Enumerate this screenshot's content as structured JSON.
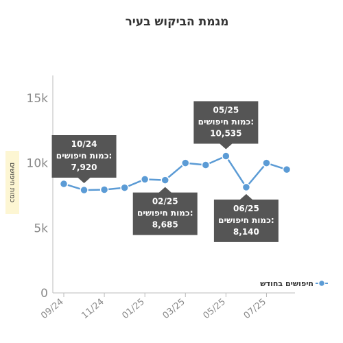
{
  "chart_data": {
    "type": "line",
    "title": "מגמת הביקוש בעיר",
    "ylabel": "כמות חיפושים",
    "xlabel": "",
    "ylim": [
      0,
      15000
    ],
    "yticks": [
      0,
      5000,
      10000,
      15000
    ],
    "ytick_labels": [
      "0",
      "5k",
      "10k",
      "15k"
    ],
    "xtick_labels": [
      "09/24",
      "11/24",
      "01/25",
      "03/25",
      "05/25",
      "07/25"
    ],
    "legend_position": "right",
    "colors": {
      "line": "#5b9bd5",
      "callout": "#555555",
      "ylabel_bg": "#fdf6d3",
      "axis": "#bbbbbb"
    },
    "series": [
      {
        "name": "חיפושים בחודש",
        "x": [
          "09/24",
          "10/24",
          "11/24",
          "12/24",
          "01/25",
          "02/25",
          "03/25",
          "04/25",
          "05/25",
          "06/25",
          "07/25",
          "08/25"
        ],
        "values": [
          8400,
          7920,
          7950,
          8100,
          8750,
          8685,
          10000,
          9850,
          10535,
          8140,
          10000,
          9500
        ]
      }
    ],
    "annotations": [
      {
        "period": "10/24",
        "label": "כמות חיפושים:",
        "value": "7,920"
      },
      {
        "period": "02/25",
        "label": "כמות חיפושים:",
        "value": "8,685"
      },
      {
        "period": "05/25",
        "label": "כמות חיפושים:",
        "value": "10,535"
      },
      {
        "period": "06/25",
        "label": "כמות חיפושים:",
        "value": "8,140"
      }
    ]
  }
}
